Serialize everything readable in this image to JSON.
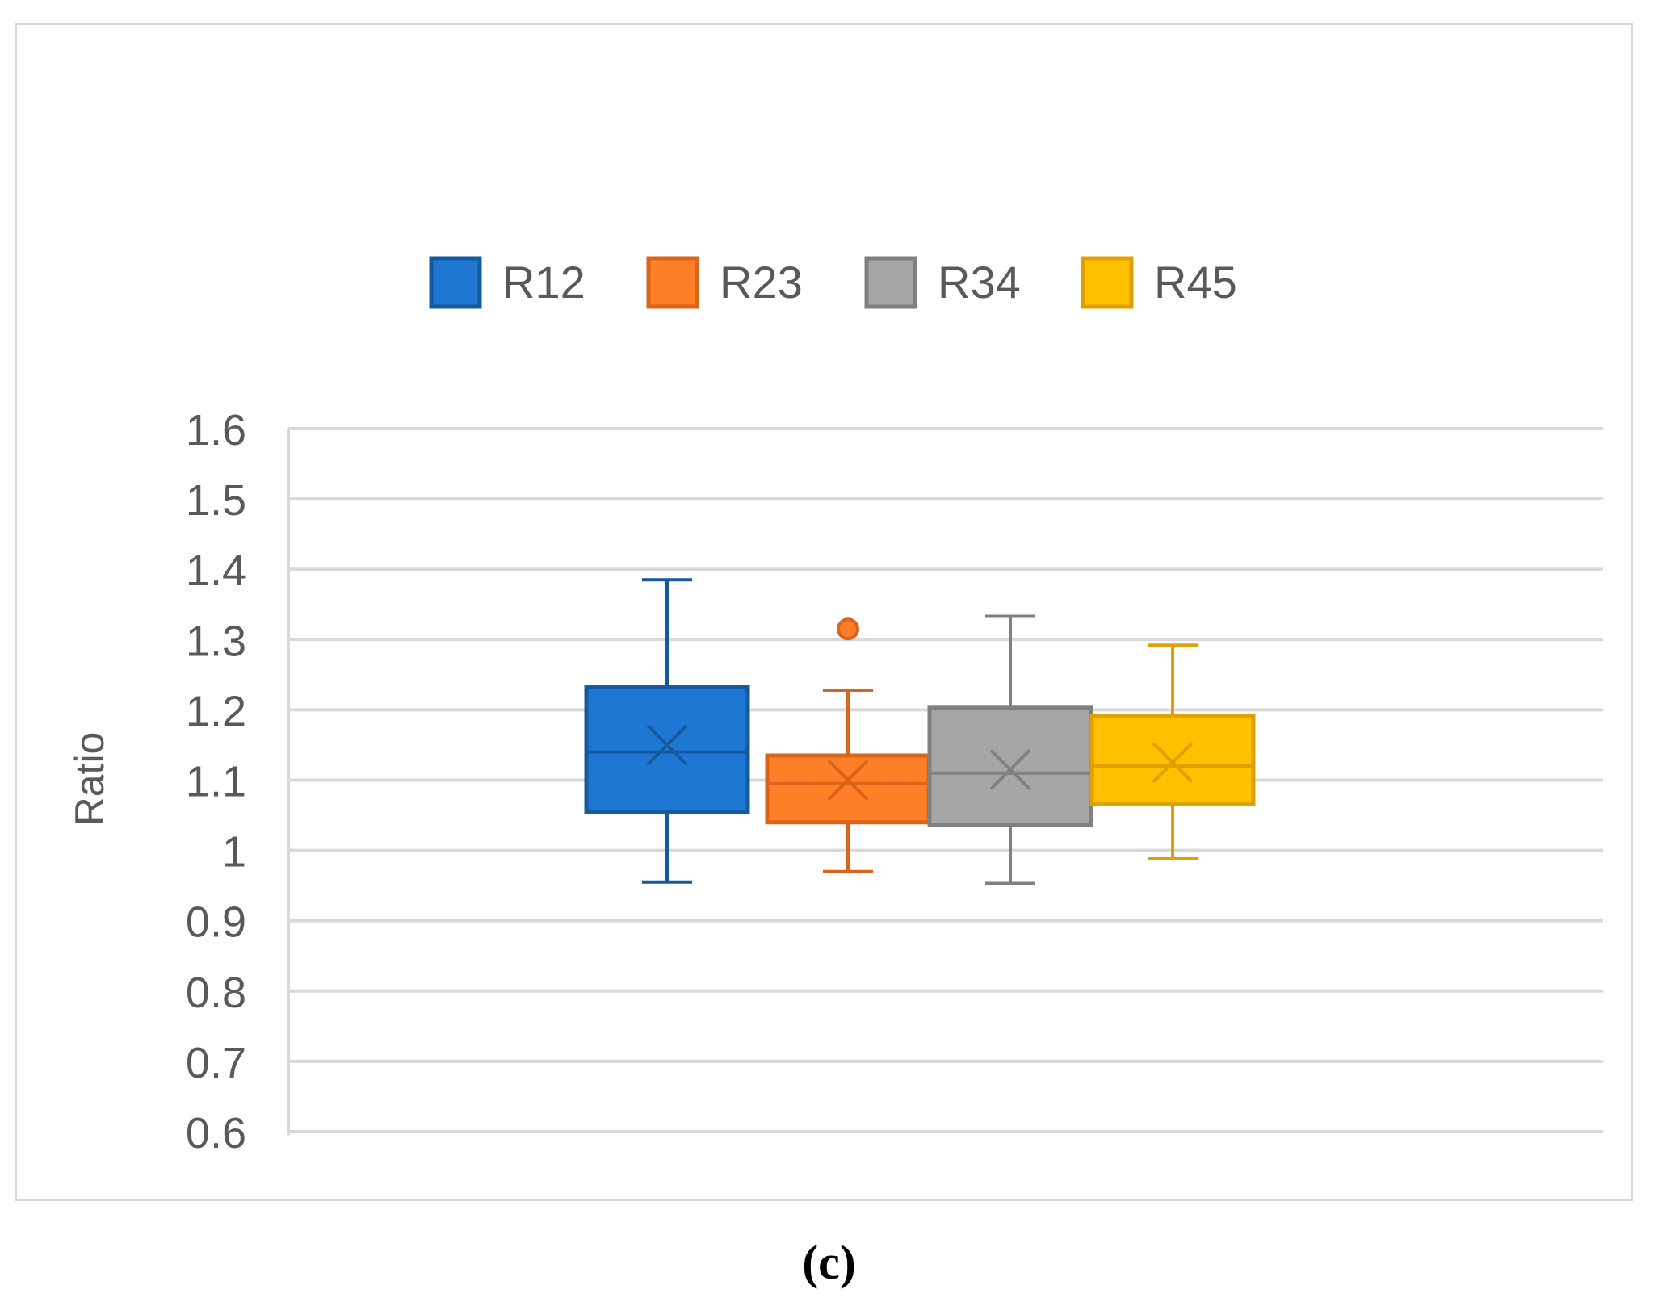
{
  "chart_data": {
    "type": "boxplot",
    "ylabel": "Ratio",
    "xlabel": "",
    "ylim": [
      0.6,
      1.6
    ],
    "yticks": [
      "1.6",
      "1.5",
      "1.4",
      "1.3",
      "1.2",
      "1.1",
      "1",
      "0.9",
      "0.8",
      "0.7",
      "0.6"
    ],
    "grid": true,
    "legend_position": "top-center",
    "series": [
      {
        "name": "R12",
        "color": "#1f77d4",
        "stroke": "#155a9c",
        "whisker_low": 0.955,
        "q1": 1.055,
        "median": 1.14,
        "q3": 1.232,
        "whisker_high": 1.385,
        "mean": 1.15,
        "outliers": []
      },
      {
        "name": "R23",
        "color": "#ff7f27",
        "stroke": "#d9641a",
        "whisker_low": 0.97,
        "q1": 1.04,
        "median": 1.095,
        "q3": 1.135,
        "whisker_high": 1.228,
        "mean": 1.1,
        "outliers": [
          1.315
        ]
      },
      {
        "name": "R34",
        "color": "#a6a6a6",
        "stroke": "#808080",
        "whisker_low": 0.953,
        "q1": 1.036,
        "median": 1.11,
        "q3": 1.203,
        "whisker_high": 1.333,
        "mean": 1.115,
        "outliers": []
      },
      {
        "name": "R45",
        "color": "#ffc000",
        "stroke": "#e0a000",
        "whisker_low": 0.988,
        "q1": 1.066,
        "median": 1.12,
        "q3": 1.191,
        "whisker_high": 1.292,
        "mean": 1.125,
        "outliers": []
      }
    ]
  },
  "caption": "(c)"
}
